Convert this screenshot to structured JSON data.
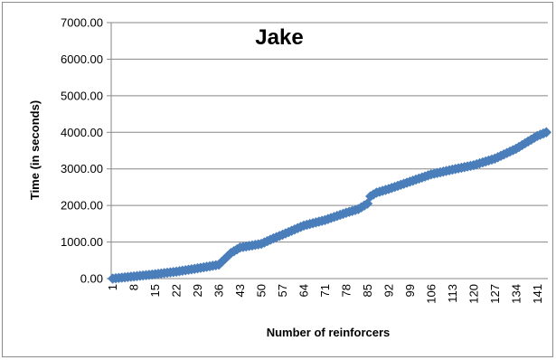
{
  "chart_data": {
    "type": "line",
    "title": "Jake",
    "xlabel": "Number of reinforcers",
    "ylabel": "Time (in seconds)",
    "ylim": [
      0,
      7000
    ],
    "y_ticks": [
      "0.00",
      "1000.00",
      "2000.00",
      "3000.00",
      "4000.00",
      "5000.00",
      "6000.00",
      "7000.00"
    ],
    "x_ticks": [
      "1",
      "8",
      "15",
      "22",
      "29",
      "36",
      "43",
      "50",
      "57",
      "64",
      "71",
      "78",
      "85",
      "92",
      "99",
      "106",
      "113",
      "120",
      "127",
      "134",
      "141"
    ],
    "n_points": 144,
    "grid": "horizontal",
    "legend": "none",
    "marker": "diamond",
    "series_color": "#4a7ebb",
    "anchors": [
      [
        1,
        0
      ],
      [
        8,
        60
      ],
      [
        15,
        120
      ],
      [
        22,
        190
      ],
      [
        29,
        280
      ],
      [
        36,
        380
      ],
      [
        40,
        700
      ],
      [
        43,
        850
      ],
      [
        50,
        950
      ],
      [
        54,
        1100
      ],
      [
        57,
        1200
      ],
      [
        64,
        1450
      ],
      [
        71,
        1600
      ],
      [
        78,
        1800
      ],
      [
        82,
        1900
      ],
      [
        85,
        2050
      ],
      [
        86,
        2250
      ],
      [
        88,
        2350
      ],
      [
        92,
        2450
      ],
      [
        99,
        2650
      ],
      [
        106,
        2850
      ],
      [
        113,
        2980
      ],
      [
        120,
        3100
      ],
      [
        127,
        3280
      ],
      [
        134,
        3550
      ],
      [
        138,
        3750
      ],
      [
        141,
        3900
      ],
      [
        144,
        4000
      ]
    ]
  }
}
